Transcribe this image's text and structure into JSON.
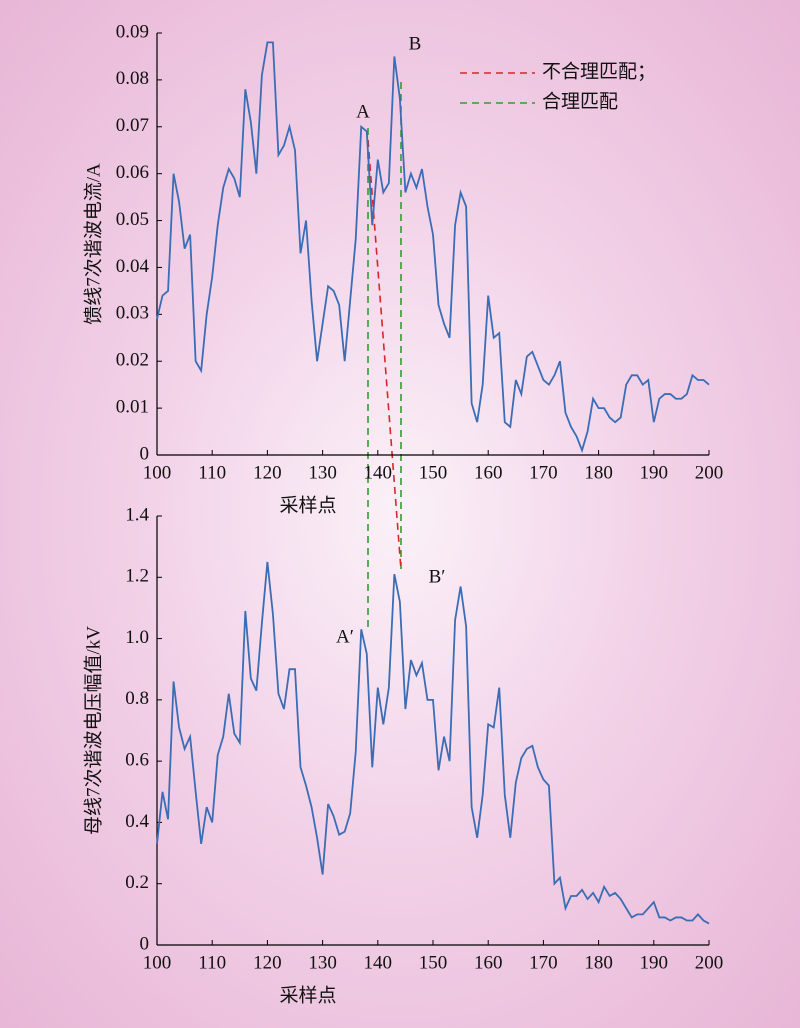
{
  "chart_data": [
    {
      "type": "line",
      "xlabel": "采样点",
      "ylabel": "馈线7次谐波电流/A",
      "xlim": [
        100,
        200
      ],
      "xticks": [
        100,
        110,
        120,
        130,
        140,
        150,
        160,
        170,
        180,
        190,
        200
      ],
      "ylim": [
        0,
        0.09
      ],
      "yticks": [
        0,
        0.01,
        0.02,
        0.03,
        0.04,
        0.05,
        0.06,
        0.07,
        0.08,
        0.09
      ],
      "annotations": [
        "A",
        "B"
      ],
      "legend": [
        "不合理匹配；",
        "合理匹配"
      ],
      "series": [
        {
          "color": "#3a6db5",
          "x": [
            100,
            101,
            102,
            103,
            104,
            105,
            106,
            107,
            108,
            109,
            110,
            111,
            112,
            113,
            114,
            115,
            116,
            117,
            118,
            119,
            120,
            121,
            122,
            123,
            124,
            125,
            126,
            127,
            128,
            129,
            130,
            131,
            132,
            133,
            134,
            135,
            136,
            137,
            138,
            139,
            140,
            141,
            142,
            143,
            144,
            145,
            146,
            147,
            148,
            149,
            150,
            151,
            152,
            153,
            154,
            155,
            156,
            157,
            158,
            159,
            160,
            161,
            162,
            163,
            164,
            165,
            166,
            167,
            168,
            169,
            170,
            171,
            172,
            173,
            174,
            175,
            176,
            177,
            178,
            179,
            180,
            181,
            182,
            183,
            184,
            185,
            186,
            187,
            188,
            189,
            190,
            191,
            192,
            193,
            194,
            195,
            196,
            197,
            198,
            199,
            200
          ],
          "values": [
            0.029,
            0.034,
            0.035,
            0.06,
            0.054,
            0.044,
            0.047,
            0.02,
            0.018,
            0.03,
            0.038,
            0.049,
            0.057,
            0.061,
            0.059,
            0.055,
            0.078,
            0.071,
            0.06,
            0.081,
            0.088,
            0.088,
            0.064,
            0.066,
            0.07,
            0.065,
            0.043,
            0.05,
            0.033,
            0.02,
            0.028,
            0.036,
            0.035,
            0.032,
            0.02,
            0.033,
            0.046,
            0.07,
            0.069,
            0.049,
            0.063,
            0.056,
            0.058,
            0.085,
            0.076,
            0.056,
            0.06,
            0.057,
            0.061,
            0.053,
            0.047,
            0.032,
            0.028,
            0.025,
            0.049,
            0.056,
            0.053,
            0.011,
            0.007,
            0.015,
            0.034,
            0.025,
            0.026,
            0.007,
            0.006,
            0.016,
            0.013,
            0.021,
            0.022,
            0.019,
            0.016,
            0.015,
            0.017,
            0.02,
            0.009,
            0.006,
            0.004,
            0.001,
            0.005,
            0.012,
            0.01,
            0.01,
            0.008,
            0.007,
            0.008,
            0.015,
            0.017,
            0.017,
            0.015,
            0.016,
            0.007,
            0.012,
            0.013,
            0.013,
            0.012,
            0.012,
            0.013,
            0.017,
            0.016,
            0.016,
            0.015
          ]
        }
      ]
    },
    {
      "type": "line",
      "xlabel": "采样点",
      "ylabel": "母线7次谐波电压幅值/kV",
      "xlim": [
        100,
        200
      ],
      "xticks": [
        100,
        110,
        120,
        130,
        140,
        150,
        160,
        170,
        180,
        190,
        200
      ],
      "ylim": [
        0,
        1.4
      ],
      "yticks": [
        0,
        0.2,
        0.4,
        0.6,
        0.8,
        {
          "value": 1,
          "label": "1.0"
        },
        1.2,
        1.4
      ],
      "annotations": [
        "A′",
        "B′"
      ],
      "series": [
        {
          "color": "#3a6db5",
          "x": [
            100,
            101,
            102,
            103,
            104,
            105,
            106,
            107,
            108,
            109,
            110,
            111,
            112,
            113,
            114,
            115,
            116,
            117,
            118,
            119,
            120,
            121,
            122,
            123,
            124,
            125,
            126,
            127,
            128,
            129,
            130,
            131,
            132,
            133,
            134,
            135,
            136,
            137,
            138,
            139,
            140,
            141,
            142,
            143,
            144,
            145,
            146,
            147,
            148,
            149,
            150,
            151,
            152,
            153,
            154,
            155,
            156,
            157,
            158,
            159,
            160,
            161,
            162,
            163,
            164,
            165,
            166,
            167,
            168,
            169,
            170,
            171,
            172,
            173,
            174,
            175,
            176,
            177,
            178,
            179,
            180,
            181,
            182,
            183,
            184,
            185,
            186,
            187,
            188,
            189,
            190,
            191,
            192,
            193,
            194,
            195,
            196,
            197,
            198,
            199,
            200
          ],
          "values": [
            0.33,
            0.5,
            0.41,
            0.86,
            0.71,
            0.64,
            0.68,
            0.5,
            0.33,
            0.45,
            0.4,
            0.62,
            0.68,
            0.82,
            0.69,
            0.66,
            1.09,
            0.87,
            0.83,
            1.05,
            1.25,
            1.08,
            0.82,
            0.77,
            0.9,
            0.9,
            0.58,
            0.52,
            0.45,
            0.35,
            0.23,
            0.46,
            0.42,
            0.36,
            0.37,
            0.43,
            0.63,
            1.03,
            0.95,
            0.58,
            0.84,
            0.72,
            0.84,
            1.21,
            1.12,
            0.77,
            0.93,
            0.88,
            0.92,
            0.8,
            0.8,
            0.57,
            0.68,
            0.6,
            1.06,
            1.17,
            1.04,
            0.45,
            0.35,
            0.49,
            0.72,
            0.71,
            0.84,
            0.49,
            0.35,
            0.53,
            0.61,
            0.64,
            0.65,
            0.58,
            0.54,
            0.52,
            0.2,
            0.22,
            0.12,
            0.16,
            0.16,
            0.18,
            0.15,
            0.17,
            0.14,
            0.19,
            0.16,
            0.17,
            0.15,
            0.12,
            0.09,
            0.1,
            0.1,
            0.12,
            0.14,
            0.09,
            0.09,
            0.08,
            0.09,
            0.09,
            0.08,
            0.08,
            0.1,
            0.08,
            0.07
          ]
        }
      ]
    }
  ]
}
